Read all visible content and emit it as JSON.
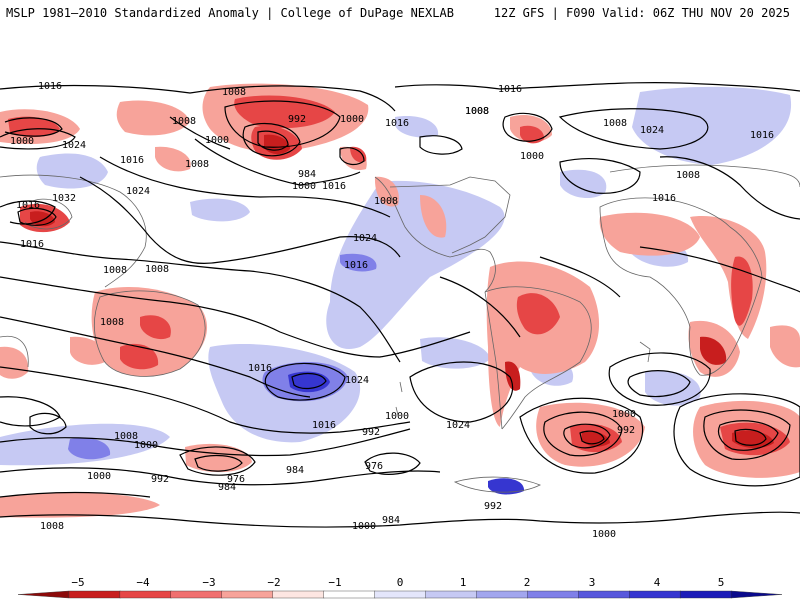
{
  "header": {
    "title_left": "MSLP 1981–2010 Standardized Anomaly | College of DuPage NEXLAB",
    "title_right": "12Z GFS | F090 Valid: 06Z THU NOV 20 2025"
  },
  "map": {
    "isobar_labels": [
      "1016",
      "1008",
      "992",
      "1000",
      "1008",
      "1016",
      "1008",
      "1000",
      "1024",
      "1016",
      "1000",
      "1008",
      "1016",
      "1032",
      "1024",
      "1016",
      "1008",
      "1000",
      "984",
      "1016",
      "1008",
      "1024",
      "1016",
      "1016",
      "1008",
      "1008",
      "1008",
      "1016",
      "1024",
      "1016",
      "1000",
      "992",
      "1024",
      "1016",
      "1008",
      "1008",
      "1000",
      "992",
      "1024",
      "1016",
      "1008",
      "1000",
      "992",
      "976",
      "984",
      "976",
      "984",
      "992",
      "1000",
      "1000",
      "984",
      "1000",
      "1008",
      "1000"
    ],
    "colors": {
      "neg_strong": "#c81e1e",
      "neg_mid": "#e64646",
      "neg_weak": "#f7a39a",
      "pos_weak": "#c6c9f3",
      "pos_mid": "#8080e8",
      "pos_strong": "#3636d0",
      "contour": "#000000",
      "border": "#666666"
    }
  },
  "colorbar": {
    "ticks": [
      "−5",
      "−4",
      "−3",
      "−2",
      "−1",
      "0",
      "1",
      "2",
      "3",
      "4",
      "5"
    ],
    "colors": [
      "#8c0a0a",
      "#c81e1e",
      "#e64646",
      "#f07070",
      "#f7a39a",
      "#fde6e2",
      "#ffffff",
      "#e4e6fb",
      "#c6c9f3",
      "#a2a6ee",
      "#8080e8",
      "#5858dc",
      "#3636d0",
      "#1c1cb8",
      "#0a0a8c"
    ]
  }
}
